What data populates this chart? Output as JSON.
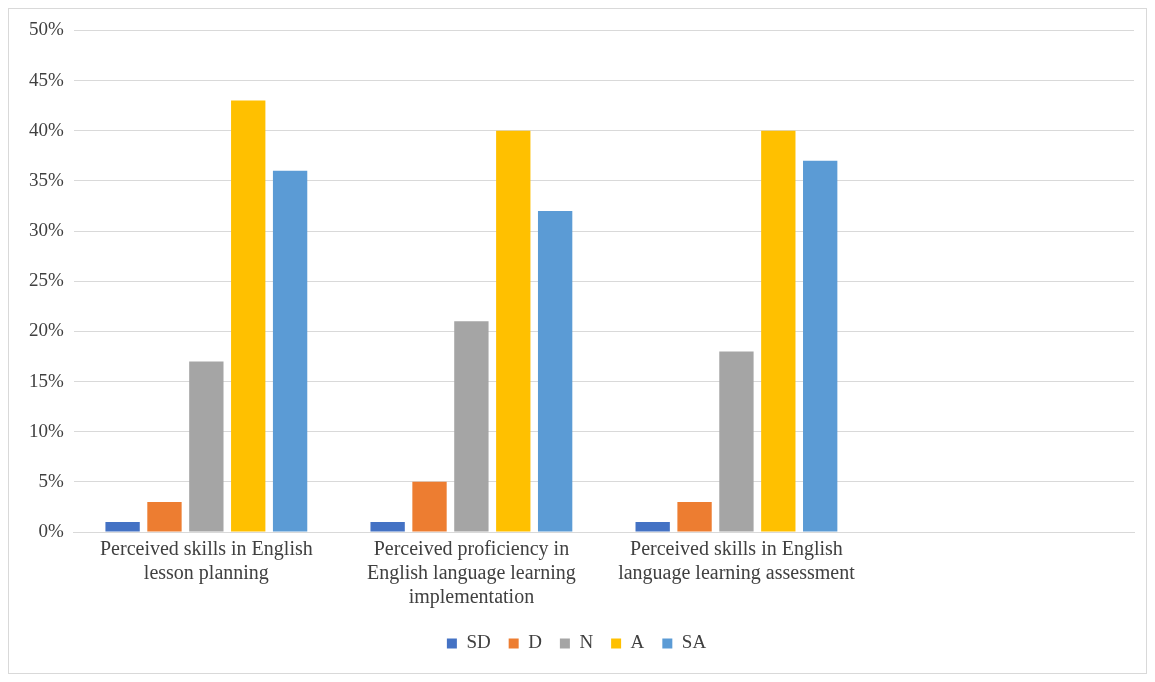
{
  "chart_data": {
    "type": "bar",
    "categories": [
      "Perceived skills in English lesson planning",
      "Perceived proficiency in English language learning implementation",
      "Perceived skills in English language learning assessment",
      null
    ],
    "series": [
      {
        "name": "SD",
        "color": "#4472c4",
        "values": [
          1,
          1,
          1,
          null
        ]
      },
      {
        "name": "D",
        "color": "#ed7d31",
        "values": [
          3,
          5,
          3,
          null
        ]
      },
      {
        "name": "N",
        "color": "#a5a5a5",
        "values": [
          17,
          21,
          18,
          null
        ]
      },
      {
        "name": "A",
        "color": "#ffc000",
        "values": [
          43,
          40,
          40,
          null
        ]
      },
      {
        "name": "SA",
        "color": "#5b9bd5",
        "values": [
          36,
          32,
          37,
          null
        ]
      }
    ],
    "ylim": [
      0,
      50
    ],
    "yticks": [
      {
        "value": 0,
        "label": "0%"
      },
      {
        "value": 5,
        "label": "5%"
      },
      {
        "value": 10,
        "label": "10%"
      },
      {
        "value": 15,
        "label": "15%"
      },
      {
        "value": 20,
        "label": "20%"
      },
      {
        "value": 25,
        "label": "25%"
      },
      {
        "value": 30,
        "label": "30%"
      },
      {
        "value": 35,
        "label": "35%"
      },
      {
        "value": 40,
        "label": "40%"
      },
      {
        "value": 45,
        "label": "45%"
      },
      {
        "value": 50,
        "label": "50%"
      }
    ],
    "grid": "y",
    "legend": "bottom"
  }
}
